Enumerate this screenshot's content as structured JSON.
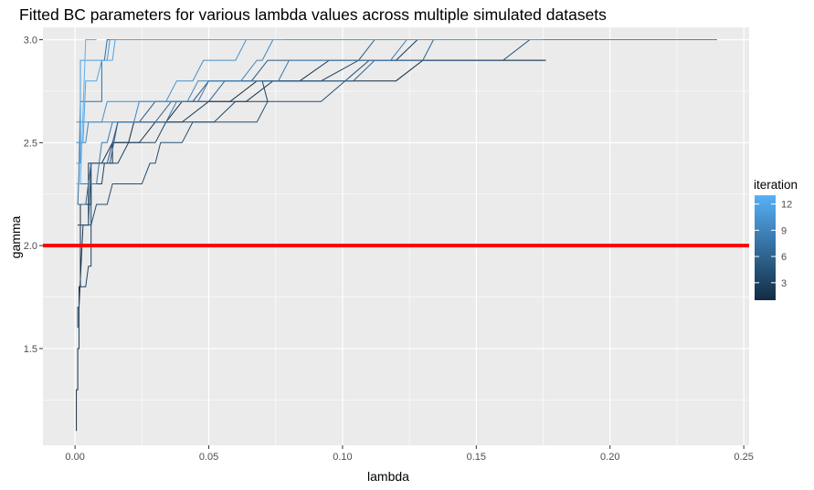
{
  "chart_data": {
    "type": "line",
    "title": "Fitted BC parameters for various lambda values across multiple simulated datasets",
    "xlabel": "lambda",
    "ylabel": "gamma",
    "xlim": [
      -0.012,
      0.252
    ],
    "ylim": [
      1.03,
      3.06
    ],
    "x_ticks": [
      0.0,
      0.05,
      0.1,
      0.15,
      0.2,
      0.25
    ],
    "x_tick_labels": [
      "0.00",
      "0.05",
      "0.10",
      "0.15",
      "0.20",
      "0.25"
    ],
    "y_ticks": [
      1.5,
      2.0,
      2.5,
      3.0
    ],
    "y_tick_labels": [
      "1.5",
      "2.0",
      "2.5",
      "3.0"
    ],
    "grid": true,
    "background": "#ebebeb",
    "reference_line": {
      "y": 2.0,
      "color": "#ff0000"
    },
    "legend": {
      "title": "iteration",
      "placement": "right",
      "type": "colorbar",
      "range": [
        1,
        13
      ],
      "ticks": [
        3,
        6,
        9,
        12
      ],
      "tick_labels": [
        "3",
        "6",
        "9",
        "12"
      ],
      "low_color": "#132b43",
      "high_color": "#56b1f7"
    },
    "series": [
      {
        "iteration": 1,
        "points": [
          [
            0.0005,
            1.1
          ],
          [
            0.0005,
            1.3
          ],
          [
            0.001,
            1.3
          ],
          [
            0.001,
            1.5
          ],
          [
            0.0015,
            1.5
          ],
          [
            0.0015,
            1.8
          ],
          [
            0.002,
            1.8
          ],
          [
            0.002,
            2.2
          ],
          [
            0.006,
            2.2
          ],
          [
            0.006,
            2.4
          ],
          [
            0.014,
            2.4
          ],
          [
            0.014,
            2.5
          ],
          [
            0.02,
            2.5
          ],
          [
            0.022,
            2.6
          ],
          [
            0.034,
            2.6
          ],
          [
            0.04,
            2.7
          ],
          [
            0.058,
            2.7
          ],
          [
            0.068,
            2.8
          ],
          [
            0.12,
            2.8
          ],
          [
            0.13,
            2.9
          ],
          [
            0.176,
            2.9
          ]
        ]
      },
      {
        "iteration": 2,
        "points": [
          [
            0.001,
            1.6
          ],
          [
            0.001,
            1.7
          ],
          [
            0.0015,
            1.7
          ],
          [
            0.003,
            2.1
          ],
          [
            0.005,
            2.1
          ],
          [
            0.005,
            2.4
          ],
          [
            0.01,
            2.4
          ],
          [
            0.014,
            2.5
          ],
          [
            0.024,
            2.5
          ],
          [
            0.03,
            2.6
          ],
          [
            0.04,
            2.6
          ],
          [
            0.05,
            2.7
          ],
          [
            0.064,
            2.7
          ],
          [
            0.074,
            2.8
          ],
          [
            0.084,
            2.8
          ],
          [
            0.095,
            2.9
          ],
          [
            0.12,
            2.9
          ],
          [
            0.128,
            3.0
          ]
        ]
      },
      {
        "iteration": 3,
        "points": [
          [
            0.0015,
            1.5
          ],
          [
            0.0015,
            1.8
          ],
          [
            0.004,
            1.8
          ],
          [
            0.005,
            1.9
          ],
          [
            0.006,
            1.9
          ],
          [
            0.006,
            2.3
          ],
          [
            0.01,
            2.3
          ],
          [
            0.011,
            2.4
          ],
          [
            0.016,
            2.4
          ],
          [
            0.02,
            2.5
          ],
          [
            0.03,
            2.5
          ],
          [
            0.034,
            2.6
          ],
          [
            0.052,
            2.6
          ],
          [
            0.06,
            2.7
          ],
          [
            0.072,
            2.7
          ],
          [
            0.07,
            2.8
          ],
          [
            0.092,
            2.8
          ],
          [
            0.106,
            2.9
          ],
          [
            0.176,
            2.9
          ]
        ]
      },
      {
        "iteration": 4,
        "points": [
          [
            0.001,
            2.1
          ],
          [
            0.006,
            2.1
          ],
          [
            0.008,
            2.2
          ],
          [
            0.012,
            2.2
          ],
          [
            0.014,
            2.3
          ],
          [
            0.025,
            2.3
          ],
          [
            0.028,
            2.4
          ],
          [
            0.03,
            2.4
          ],
          [
            0.032,
            2.5
          ],
          [
            0.04,
            2.5
          ],
          [
            0.044,
            2.6
          ],
          [
            0.068,
            2.6
          ],
          [
            0.072,
            2.7
          ],
          [
            0.092,
            2.7
          ],
          [
            0.11,
            2.9
          ],
          [
            0.16,
            2.9
          ],
          [
            0.17,
            3.0
          ]
        ]
      },
      {
        "iteration": 5,
        "points": [
          [
            0.001,
            2.1
          ],
          [
            0.005,
            2.1
          ],
          [
            0.006,
            2.4
          ],
          [
            0.012,
            2.4
          ],
          [
            0.016,
            2.6
          ],
          [
            0.024,
            2.6
          ],
          [
            0.03,
            2.7
          ],
          [
            0.044,
            2.7
          ],
          [
            0.05,
            2.8
          ],
          [
            0.066,
            2.8
          ],
          [
            0.072,
            2.9
          ],
          [
            0.106,
            2.9
          ],
          [
            0.112,
            3.0
          ]
        ]
      },
      {
        "iteration": 6,
        "points": [
          [
            0.001,
            2.2
          ],
          [
            0.004,
            2.2
          ],
          [
            0.006,
            2.4
          ],
          [
            0.013,
            2.4
          ],
          [
            0.016,
            2.6
          ],
          [
            0.03,
            2.6
          ],
          [
            0.036,
            2.7
          ],
          [
            0.05,
            2.7
          ],
          [
            0.056,
            2.8
          ],
          [
            0.104,
            2.8
          ],
          [
            0.112,
            2.9
          ],
          [
            0.13,
            2.9
          ],
          [
            0.134,
            3.0
          ]
        ]
      },
      {
        "iteration": 7,
        "points": [
          [
            0.001,
            2.2
          ],
          [
            0.0015,
            2.35
          ],
          [
            0.002,
            2.7
          ],
          [
            0.01,
            2.7
          ],
          [
            0.01,
            2.9
          ],
          [
            0.011,
            2.9
          ],
          [
            0.012,
            3.0
          ],
          [
            0.016,
            3.0
          ]
        ]
      },
      {
        "iteration": 8,
        "points": [
          [
            0.0005,
            2.3
          ],
          [
            0.008,
            2.3
          ],
          [
            0.01,
            2.5
          ],
          [
            0.012,
            2.5
          ],
          [
            0.014,
            2.6
          ],
          [
            0.034,
            2.6
          ],
          [
            0.038,
            2.7
          ],
          [
            0.046,
            2.7
          ],
          [
            0.05,
            2.8
          ],
          [
            0.076,
            2.8
          ],
          [
            0.08,
            2.9
          ],
          [
            0.118,
            2.9
          ],
          [
            0.124,
            3.0
          ]
        ]
      },
      {
        "iteration": 9,
        "points": [
          [
            0.0005,
            2.5
          ],
          [
            0.004,
            2.5
          ],
          [
            0.005,
            2.6
          ],
          [
            0.022,
            2.6
          ],
          [
            0.024,
            2.7
          ],
          [
            0.042,
            2.7
          ],
          [
            0.046,
            2.8
          ],
          [
            0.062,
            2.8
          ],
          [
            0.068,
            2.9
          ],
          [
            0.07,
            2.9
          ],
          [
            0.074,
            3.0
          ],
          [
            0.24,
            3.0
          ]
        ]
      },
      {
        "iteration": 10,
        "points": [
          [
            0.0005,
            2.6
          ],
          [
            0.01,
            2.6
          ],
          [
            0.012,
            2.7
          ],
          [
            0.034,
            2.7
          ],
          [
            0.038,
            2.8
          ],
          [
            0.044,
            2.8
          ],
          [
            0.048,
            2.9
          ],
          [
            0.06,
            2.9
          ],
          [
            0.064,
            3.0
          ],
          [
            0.127,
            3.0
          ]
        ]
      },
      {
        "iteration": 11,
        "points": [
          [
            0.0005,
            2.4
          ],
          [
            0.002,
            2.4
          ],
          [
            0.002,
            2.9
          ],
          [
            0.012,
            2.9
          ],
          [
            0.013,
            3.0
          ],
          [
            0.175,
            3.0
          ]
        ]
      },
      {
        "iteration": 12,
        "points": [
          [
            0.0005,
            2.5
          ],
          [
            0.003,
            2.5
          ],
          [
            0.004,
            2.8
          ],
          [
            0.008,
            2.8
          ],
          [
            0.01,
            2.9
          ],
          [
            0.014,
            2.9
          ],
          [
            0.015,
            3.0
          ],
          [
            0.078,
            3.0
          ]
        ]
      },
      {
        "iteration": 13,
        "points": [
          [
            0.0005,
            2.3
          ],
          [
            0.002,
            2.3
          ],
          [
            0.004,
            3.0
          ],
          [
            0.008,
            3.0
          ]
        ]
      }
    ]
  }
}
